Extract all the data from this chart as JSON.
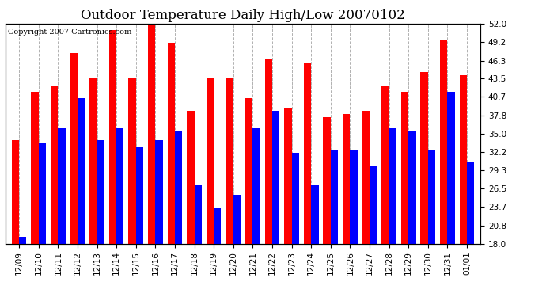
{
  "title": "Outdoor Temperature Daily High/Low 20070102",
  "copyright": "Copyright 2007 Cartronics.com",
  "dates": [
    "12/09",
    "12/10",
    "12/11",
    "12/12",
    "12/13",
    "12/14",
    "12/15",
    "12/16",
    "12/17",
    "12/18",
    "12/19",
    "12/20",
    "12/21",
    "12/22",
    "12/23",
    "12/24",
    "12/25",
    "12/26",
    "12/27",
    "12/28",
    "12/29",
    "12/30",
    "12/31",
    "01/01"
  ],
  "highs": [
    34.0,
    41.5,
    42.5,
    47.5,
    43.5,
    51.0,
    43.5,
    52.5,
    49.0,
    38.5,
    43.5,
    43.5,
    40.5,
    46.5,
    39.0,
    46.0,
    37.5,
    38.0,
    38.5,
    42.5,
    41.5,
    44.5,
    49.5,
    44.0
  ],
  "lows": [
    19.0,
    33.5,
    36.0,
    40.5,
    34.0,
    36.0,
    33.0,
    34.0,
    35.5,
    27.0,
    23.5,
    25.5,
    36.0,
    38.5,
    32.0,
    27.0,
    32.5,
    32.5,
    30.0,
    36.0,
    35.5,
    32.5,
    41.5,
    30.5
  ],
  "high_color": "#ff0000",
  "low_color": "#0000ff",
  "bg_color": "#ffffff",
  "plot_bg_color": "#ffffff",
  "grid_color": "#b0b0b0",
  "ymin": 18.0,
  "ymax": 52.0,
  "yticks": [
    18.0,
    20.8,
    23.7,
    26.5,
    29.3,
    32.2,
    35.0,
    37.8,
    40.7,
    43.5,
    46.3,
    49.2,
    52.0
  ],
  "bar_width": 0.38,
  "title_fontsize": 12,
  "tick_fontsize": 7.5,
  "copyright_fontsize": 7
}
